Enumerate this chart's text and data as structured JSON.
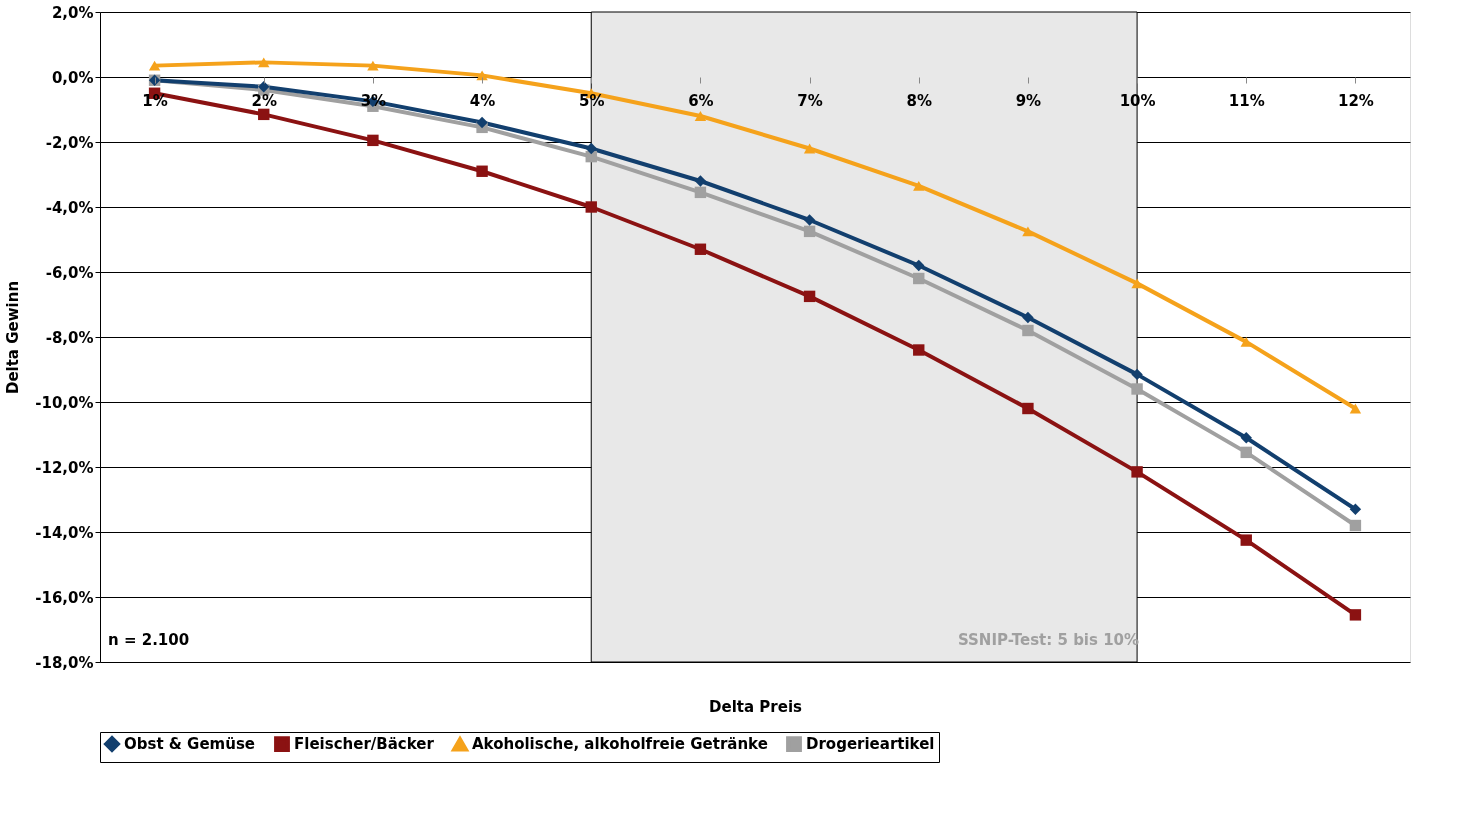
{
  "chart_data": {
    "type": "line",
    "xlabel": "Delta Preis",
    "ylabel": "Delta Gewinn",
    "categories": [
      "1%",
      "2%",
      "3%",
      "4%",
      "5%",
      "6%",
      "7%",
      "8%",
      "9%",
      "10%",
      "11%",
      "12%"
    ],
    "series": [
      {
        "name": "Obst & Gemüse",
        "color": "#123f6e",
        "marker": "diamond",
        "values": [
          -0.1,
          -0.3,
          -0.75,
          -1.4,
          -2.2,
          -3.2,
          -4.4,
          -5.8,
          -7.4,
          -9.15,
          -11.1,
          -13.3
        ]
      },
      {
        "name": "Fleischer/Bäcker",
        "color": "#8b1212",
        "marker": "square",
        "values": [
          -0.5,
          -1.15,
          -1.95,
          -2.9,
          -4.0,
          -5.3,
          -6.75,
          -8.4,
          -10.2,
          -12.15,
          -14.25,
          -16.55
        ]
      },
      {
        "name": "Akoholische, alkoholfreie Getränke",
        "color": "#f5a21b",
        "marker": "triangle",
        "values": [
          0.35,
          0.45,
          0.35,
          0.05,
          -0.5,
          -1.2,
          -2.2,
          -3.35,
          -4.75,
          -6.35,
          -8.15,
          -10.2
        ]
      },
      {
        "name": "Drogerieartikel",
        "color": "#a0a0a0",
        "marker": "square",
        "values": [
          -0.1,
          -0.4,
          -0.9,
          -1.55,
          -2.45,
          -3.55,
          -4.75,
          -6.2,
          -7.8,
          -9.6,
          -11.55,
          -13.8
        ]
      }
    ],
    "ylim": [
      -18,
      2
    ],
    "yticks": [
      {
        "value": -18,
        "label": "-18,0%"
      },
      {
        "value": -16,
        "label": "-16,0%"
      },
      {
        "value": -14,
        "label": "-14,0%"
      },
      {
        "value": -12,
        "label": "-12,0%"
      },
      {
        "value": -10,
        "label": "-10,0%"
      },
      {
        "value": -8,
        "label": "-8,0%"
      },
      {
        "value": -6,
        "label": "-6,0%"
      },
      {
        "value": -4,
        "label": "-4,0%"
      },
      {
        "value": -2,
        "label": "-2,0%"
      },
      {
        "value": 0,
        "label": "0,0%"
      },
      {
        "value": 2,
        "label": "2,0%"
      }
    ],
    "bands": [
      {
        "axis": "x",
        "from": "5%",
        "to": "10%",
        "label": "SSNIP-Test: 5 bis 10%",
        "color": "#e8e8e8"
      }
    ],
    "annotations": [
      "n = 2.100"
    ],
    "grid": "y",
    "legend": "bottom",
    "line_style": "solid"
  }
}
